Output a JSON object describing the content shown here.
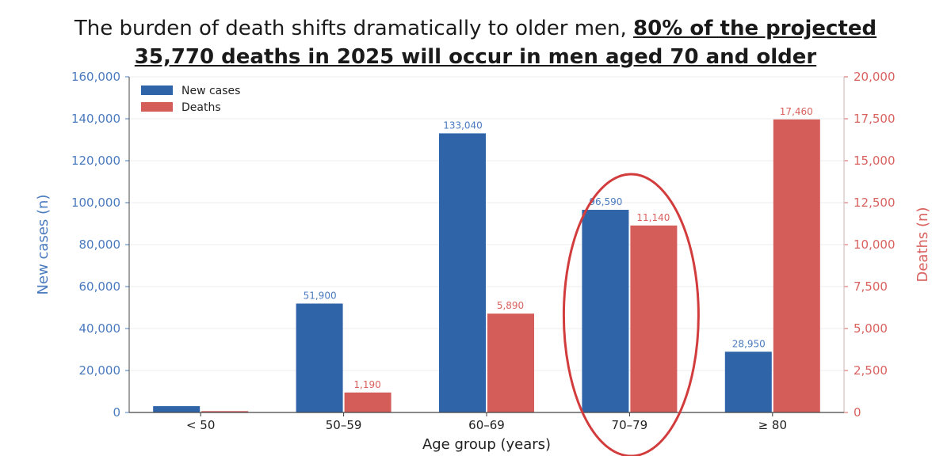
{
  "title": {
    "lead": "The burden of death shifts dramatically to older men, ",
    "highlight_1": "80% of the projected",
    "highlight_2": "35,770 deaths in 2025 will occur in men aged 70 and older"
  },
  "colors": {
    "cases": "#2f64a8",
    "deaths": "#d45d5a",
    "left_axis": "#4b7bbf",
    "right_axis": "#d9625f",
    "highlight_ellipse": "#d23c3c"
  },
  "chart_data": {
    "type": "bar",
    "categories": [
      "< 50",
      "50–59",
      "60–69",
      "70–79",
      "≥ 80"
    ],
    "series": [
      {
        "name": "New cases",
        "axis": "left",
        "values": [
          3000,
          51900,
          133040,
          96590,
          28950
        ],
        "labels": [
          "",
          "51,900",
          "133,040",
          "96,590",
          "28,950"
        ]
      },
      {
        "name": "Deaths",
        "axis": "right",
        "values": [
          80,
          1190,
          5890,
          11140,
          17460
        ],
        "labels": [
          "",
          "1,190",
          "5,890",
          "11,140",
          "17,460"
        ]
      }
    ],
    "xlabel": "Age group (years)",
    "ylabel_left": "New cases (n)",
    "ylabel_right": "Deaths (n)",
    "ylim_left": [
      0,
      160000
    ],
    "ylim_right": [
      0,
      20000
    ],
    "yticks_left": [
      "0",
      "20,000",
      "40,000",
      "60,000",
      "80,000",
      "100,000",
      "120,000",
      "140,000",
      "160,000"
    ],
    "yticks_right": [
      "0",
      "2,500",
      "5,000",
      "7,500",
      "10,000",
      "12,500",
      "15,000",
      "17,500",
      "20,000"
    ],
    "grid": "horizontal",
    "legend": "top-left",
    "annotation": "ellipse around 70–79 group"
  }
}
